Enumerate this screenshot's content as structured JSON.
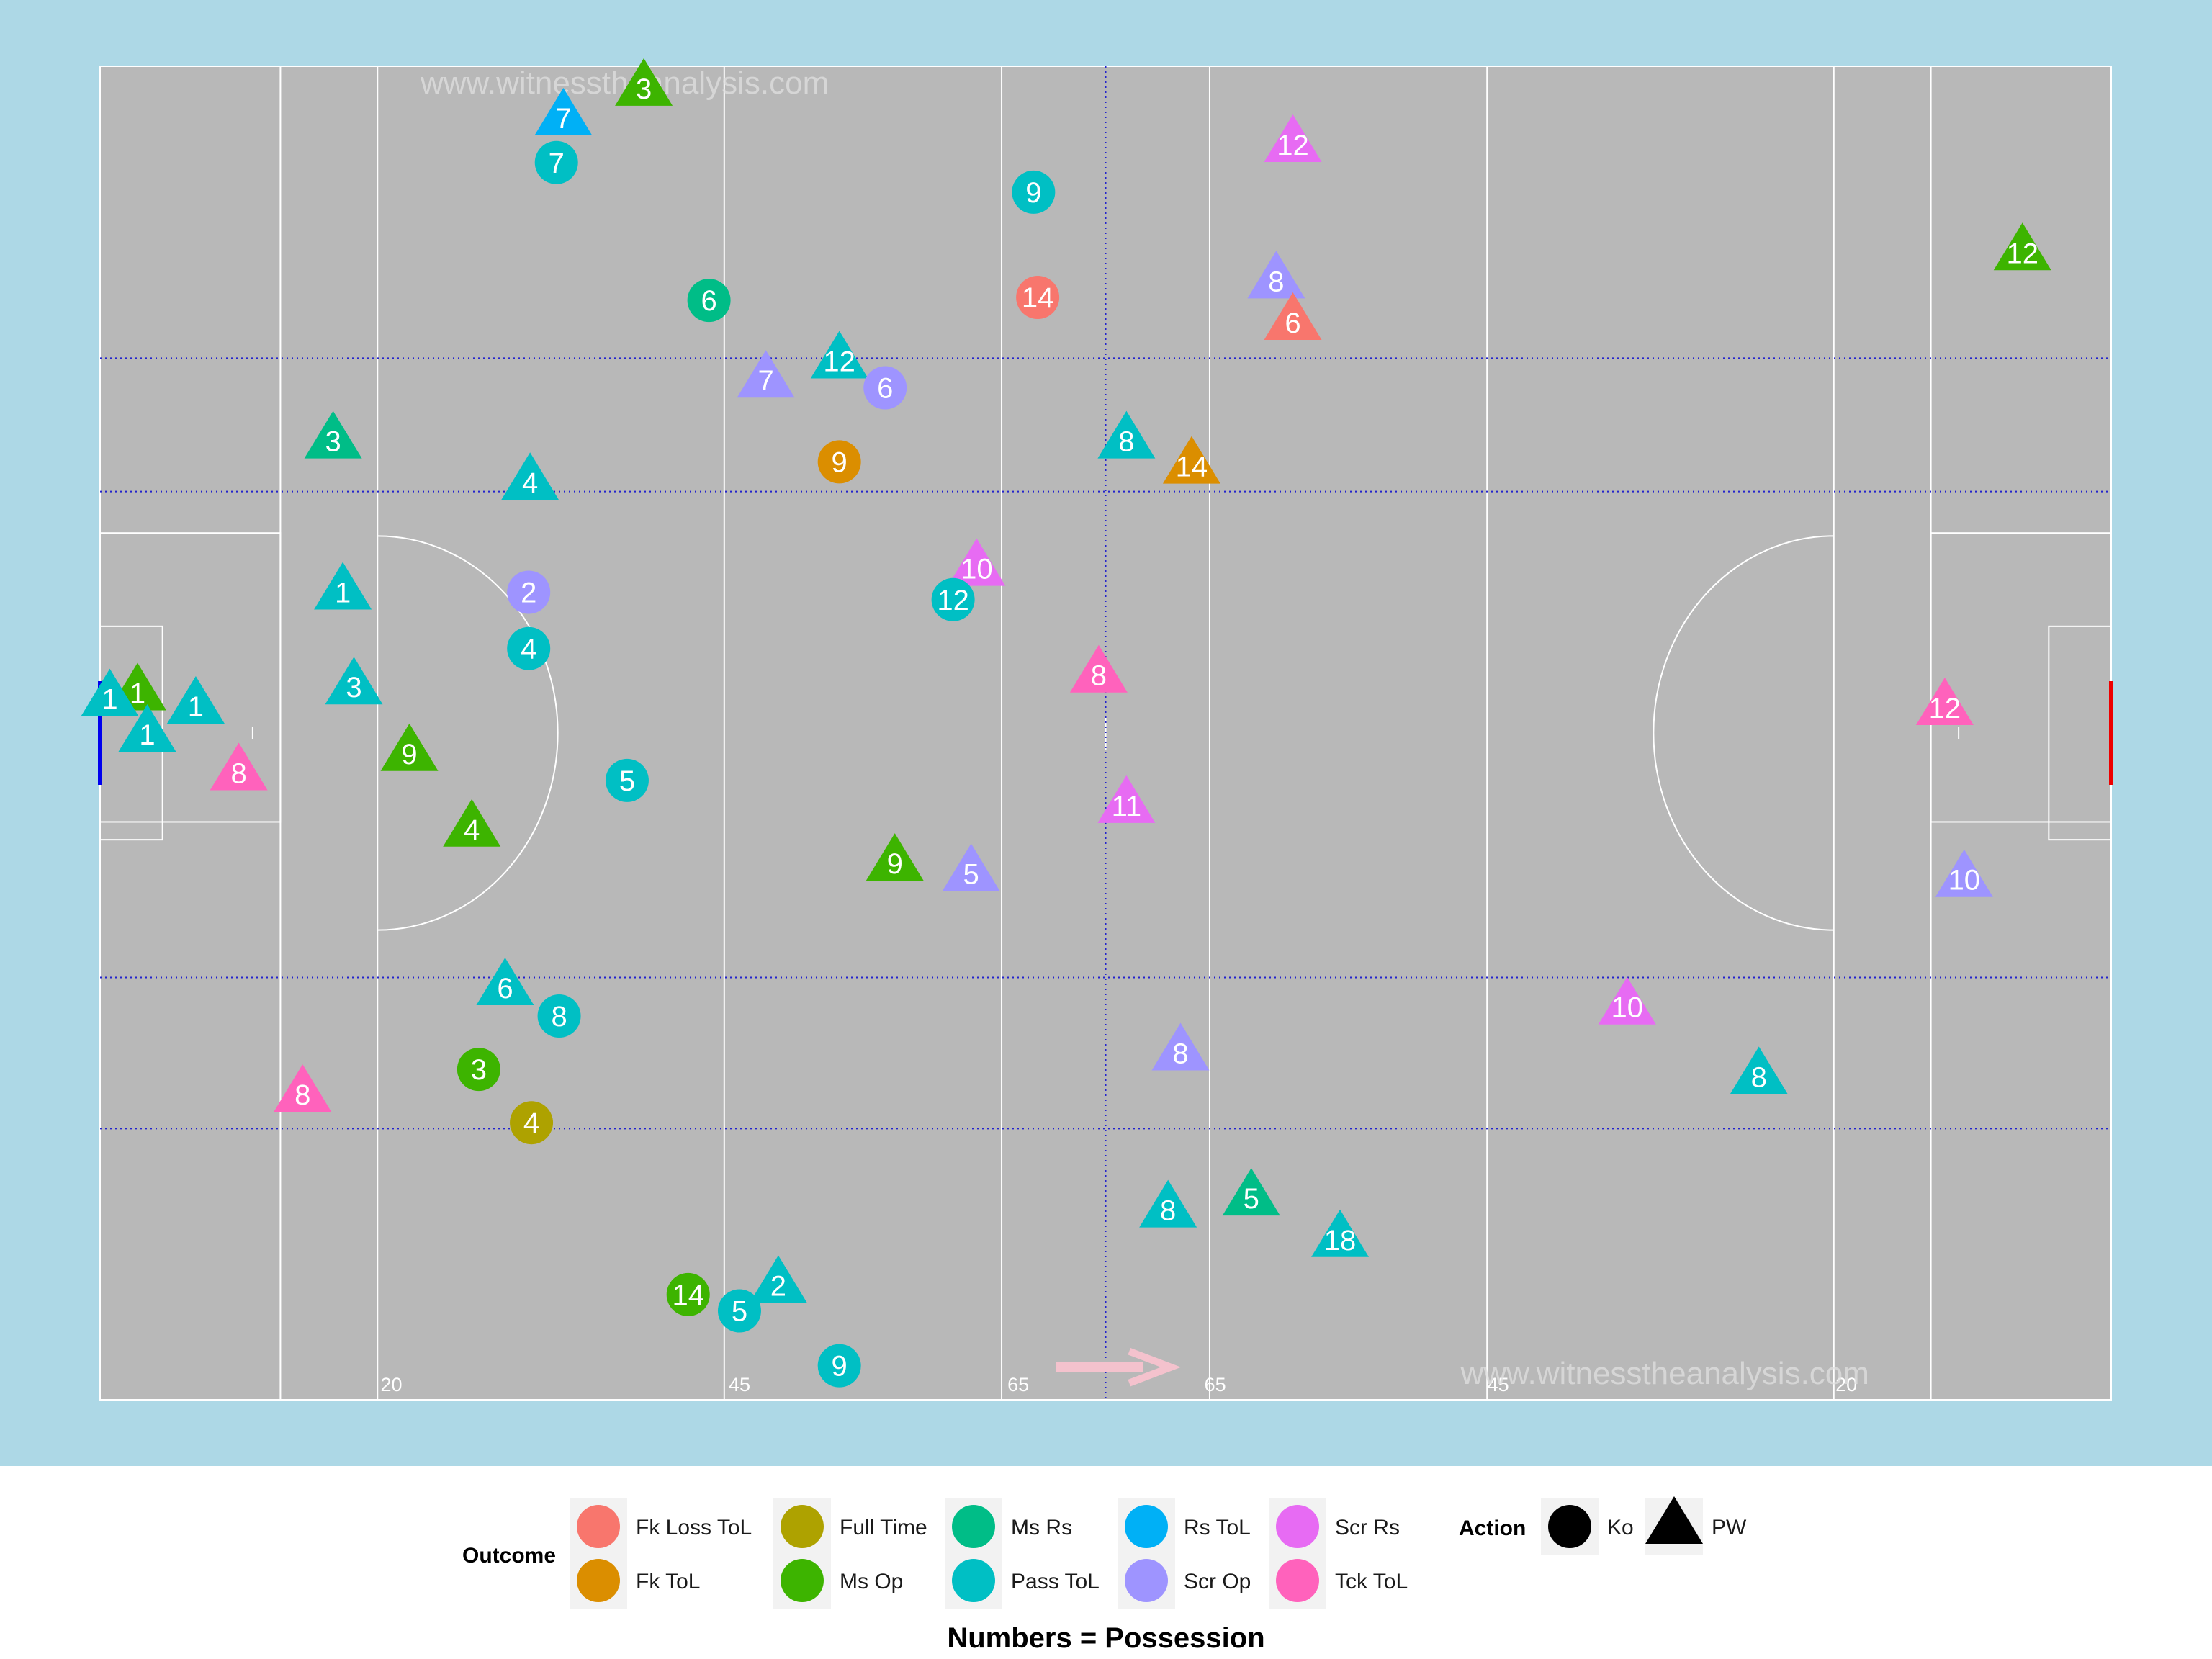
{
  "watermarks": [
    "www.witnesstheanalysis.com",
    "www.witnesstheanalysis.com"
  ],
  "distance_labels": [
    "20",
    "45",
    "65",
    "65",
    "45",
    "20"
  ],
  "caption": "Numbers = Possession",
  "legend": {
    "outcome_title": "Outcome",
    "outcomes": [
      {
        "name": "Fk Loss ToL",
        "color": "#F8766D"
      },
      {
        "name": "Fk ToL",
        "color": "#DB8E00"
      },
      {
        "name": "Full Time",
        "color": "#AEA200"
      },
      {
        "name": "Ms Op",
        "color": "#3DB400"
      },
      {
        "name": "Ms Rs",
        "color": "#00BD87"
      },
      {
        "name": "Pass ToL",
        "color": "#00BFC4"
      },
      {
        "name": "Rs ToL",
        "color": "#00B0F6"
      },
      {
        "name": "Scr Op",
        "color": "#9E94FF"
      },
      {
        "name": "Scr Rs",
        "color": "#E76BF3"
      },
      {
        "name": "Tck ToL",
        "color": "#FF62BC"
      }
    ],
    "action_title": "Action",
    "actions": [
      {
        "name": "Ko",
        "shape": "circle"
      },
      {
        "name": "PW",
        "shape": "triangle"
      }
    ]
  },
  "colors": {
    "background": "#ADD8E6",
    "pitch": "#B8B8B8",
    "lines": "#FFFFFF",
    "guides": "#2222CC",
    "left_goal": "#0000EE",
    "right_goal": "#EE0000",
    "arrow": "#F4C2CD"
  },
  "chart_data": {
    "type": "scatter",
    "x_range": [
      0,
      145
    ],
    "y_range": [
      0,
      90
    ],
    "points": [
      {
        "x": 39.2,
        "y": 88.5,
        "label": "3",
        "outcome": "Ms Op",
        "action": "PW"
      },
      {
        "x": 33.4,
        "y": 86.5,
        "label": "7",
        "outcome": "Rs ToL",
        "action": "PW"
      },
      {
        "x": 32.9,
        "y": 83.5,
        "label": "7",
        "outcome": "Pass ToL",
        "action": "Ko"
      },
      {
        "x": 67.3,
        "y": 81.5,
        "label": "9",
        "outcome": "Pass ToL",
        "action": "Ko"
      },
      {
        "x": 86.0,
        "y": 84.7,
        "label": "12",
        "outcome": "Scr Rs",
        "action": "PW"
      },
      {
        "x": 138.6,
        "y": 77.4,
        "label": "12",
        "outcome": "Ms Op",
        "action": "PW"
      },
      {
        "x": 43.9,
        "y": 74.2,
        "label": "6",
        "outcome": "Ms Rs",
        "action": "Ko"
      },
      {
        "x": 67.6,
        "y": 74.4,
        "label": "14",
        "outcome": "Fk Loss ToL",
        "action": "Ko"
      },
      {
        "x": 84.8,
        "y": 75.5,
        "label": "8",
        "outcome": "Scr Op",
        "action": "PW"
      },
      {
        "x": 86.0,
        "y": 72.7,
        "label": "6",
        "outcome": "Fk Loss ToL",
        "action": "PW"
      },
      {
        "x": 53.3,
        "y": 70.1,
        "label": "12",
        "outcome": "Pass ToL",
        "action": "PW"
      },
      {
        "x": 48.0,
        "y": 68.8,
        "label": "7",
        "outcome": "Scr Op",
        "action": "PW"
      },
      {
        "x": 56.6,
        "y": 68.3,
        "label": "6",
        "outcome": "Scr Op",
        "action": "Ko"
      },
      {
        "x": 16.8,
        "y": 64.7,
        "label": "3",
        "outcome": "Ms Rs",
        "action": "PW"
      },
      {
        "x": 31.0,
        "y": 61.9,
        "label": "4",
        "outcome": "Pass ToL",
        "action": "PW"
      },
      {
        "x": 53.3,
        "y": 63.3,
        "label": "9",
        "outcome": "Fk ToL",
        "action": "Ko"
      },
      {
        "x": 74.0,
        "y": 64.7,
        "label": "8",
        "outcome": "Pass ToL",
        "action": "PW"
      },
      {
        "x": 78.7,
        "y": 63.0,
        "label": "14",
        "outcome": "Fk ToL",
        "action": "PW"
      },
      {
        "x": 63.2,
        "y": 56.1,
        "label": "10",
        "outcome": "Scr Rs",
        "action": "PW"
      },
      {
        "x": 30.9,
        "y": 54.5,
        "label": "2",
        "outcome": "Scr Op",
        "action": "Ko"
      },
      {
        "x": 61.5,
        "y": 54.0,
        "label": "12",
        "outcome": "Pass ToL",
        "action": "Ko"
      },
      {
        "x": 17.5,
        "y": 54.5,
        "label": "1",
        "outcome": "Pass ToL",
        "action": "PW"
      },
      {
        "x": 30.9,
        "y": 50.7,
        "label": "4",
        "outcome": "Pass ToL",
        "action": "Ko"
      },
      {
        "x": 18.3,
        "y": 48.1,
        "label": "3",
        "outcome": "Pass ToL",
        "action": "PW"
      },
      {
        "x": 72.0,
        "y": 48.9,
        "label": "8",
        "outcome": "Tck ToL",
        "action": "PW"
      },
      {
        "x": 2.7,
        "y": 47.7,
        "label": "1",
        "outcome": "Ms Op",
        "action": "PW"
      },
      {
        "x": 0.7,
        "y": 47.3,
        "label": "1",
        "outcome": "Pass ToL",
        "action": "PW"
      },
      {
        "x": 6.9,
        "y": 46.8,
        "label": "1",
        "outcome": "Pass ToL",
        "action": "PW"
      },
      {
        "x": 3.4,
        "y": 44.9,
        "label": "1",
        "outcome": "Pass ToL",
        "action": "PW"
      },
      {
        "x": 22.3,
        "y": 43.6,
        "label": "9",
        "outcome": "Ms Op",
        "action": "PW"
      },
      {
        "x": 10.0,
        "y": 42.3,
        "label": "8",
        "outcome": "Tck ToL",
        "action": "PW"
      },
      {
        "x": 38.0,
        "y": 41.8,
        "label": "5",
        "outcome": "Pass ToL",
        "action": "Ko"
      },
      {
        "x": 133.0,
        "y": 46.7,
        "label": "12",
        "outcome": "Tck ToL",
        "action": "PW"
      },
      {
        "x": 74.0,
        "y": 40.1,
        "label": "11",
        "outcome": "Scr Rs",
        "action": "PW"
      },
      {
        "x": 26.8,
        "y": 38.5,
        "label": "4",
        "outcome": "Ms Op",
        "action": "PW"
      },
      {
        "x": 57.3,
        "y": 36.2,
        "label": "9",
        "outcome": "Ms Op",
        "action": "PW"
      },
      {
        "x": 62.8,
        "y": 35.5,
        "label": "5",
        "outcome": "Scr Op",
        "action": "PW"
      },
      {
        "x": 134.4,
        "y": 35.1,
        "label": "10",
        "outcome": "Scr Op",
        "action": "PW"
      },
      {
        "x": 29.2,
        "y": 27.8,
        "label": "6",
        "outcome": "Pass ToL",
        "action": "PW"
      },
      {
        "x": 33.1,
        "y": 25.9,
        "label": "8",
        "outcome": "Pass ToL",
        "action": "Ko"
      },
      {
        "x": 110.1,
        "y": 26.5,
        "label": "10",
        "outcome": "Scr Rs",
        "action": "PW"
      },
      {
        "x": 77.9,
        "y": 23.4,
        "label": "8",
        "outcome": "Scr Op",
        "action": "PW"
      },
      {
        "x": 27.3,
        "y": 22.3,
        "label": "3",
        "outcome": "Ms Op",
        "action": "Ko"
      },
      {
        "x": 119.6,
        "y": 21.8,
        "label": "8",
        "outcome": "Pass ToL",
        "action": "PW"
      },
      {
        "x": 14.6,
        "y": 20.6,
        "label": "8",
        "outcome": "Tck ToL",
        "action": "PW"
      },
      {
        "x": 31.1,
        "y": 18.7,
        "label": "4",
        "outcome": "Full Time",
        "action": "Ko"
      },
      {
        "x": 83.0,
        "y": 13.6,
        "label": "5",
        "outcome": "Ms Rs",
        "action": "PW"
      },
      {
        "x": 77.0,
        "y": 12.8,
        "label": "8",
        "outcome": "Pass ToL",
        "action": "PW"
      },
      {
        "x": 89.4,
        "y": 10.8,
        "label": "18",
        "outcome": "Pass ToL",
        "action": "PW"
      },
      {
        "x": 48.9,
        "y": 7.7,
        "label": "2",
        "outcome": "Pass ToL",
        "action": "PW"
      },
      {
        "x": 42.4,
        "y": 7.1,
        "label": "14",
        "outcome": "Ms Op",
        "action": "Ko"
      },
      {
        "x": 46.1,
        "y": 6.0,
        "label": "5",
        "outcome": "Pass ToL",
        "action": "Ko"
      },
      {
        "x": 53.3,
        "y": 2.3,
        "label": "9",
        "outcome": "Pass ToL",
        "action": "Ko"
      }
    ]
  }
}
